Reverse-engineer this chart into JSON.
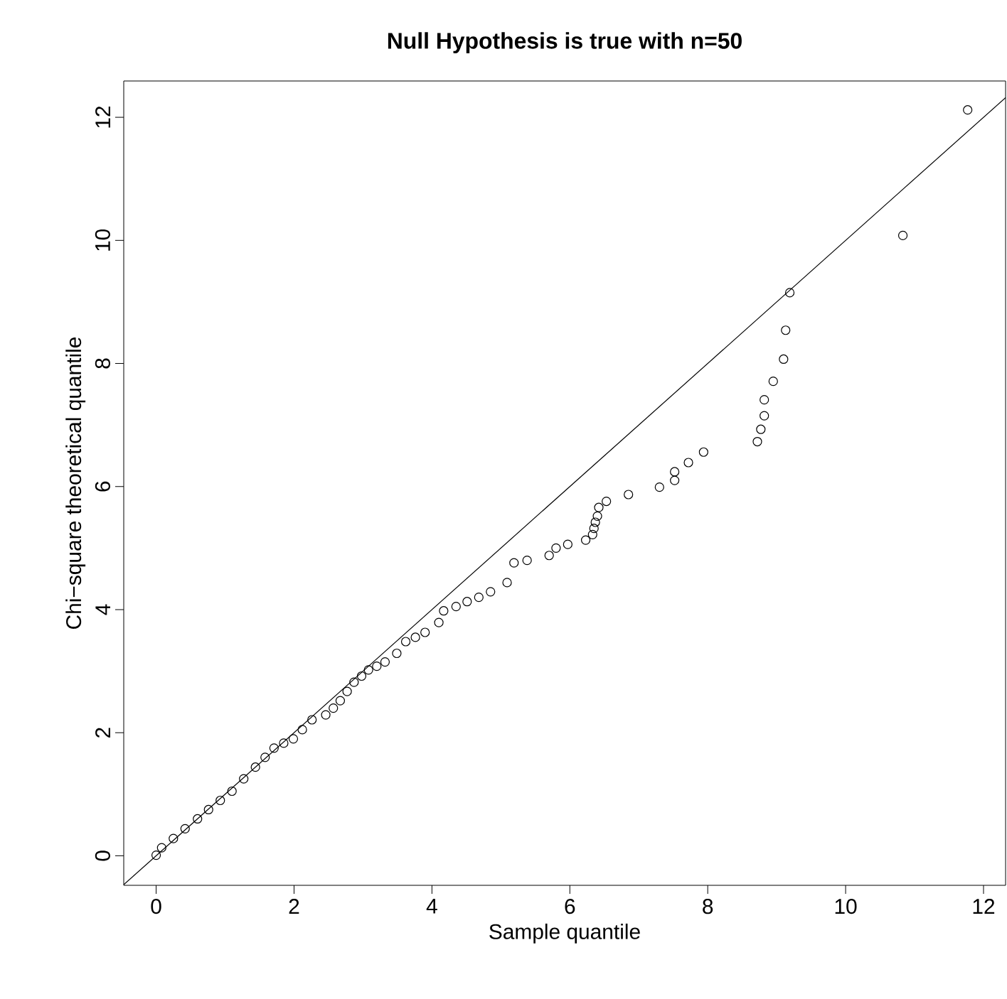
{
  "chart_data": {
    "type": "scatter",
    "title": "Null Hypothesis is true with n=50",
    "xlabel": "Sample quantile",
    "ylabel": "Chi−square theoretical quantile",
    "xlim": [
      -0.47,
      12.32
    ],
    "ylim": [
      -0.48,
      12.59
    ],
    "xticks": [
      0,
      2,
      4,
      6,
      8,
      10,
      12
    ],
    "yticks": [
      0,
      2,
      4,
      6,
      8,
      10,
      12
    ],
    "grid": false,
    "series": [
      {
        "color": "#000000",
        "marker": "circle",
        "x": [
          0,
          0.08,
          0.25,
          0.42,
          0.6,
          0.76,
          0.93,
          1.1,
          1.27,
          1.44,
          1.58,
          1.71,
          1.85,
          1.99,
          2.12,
          2.26,
          2.46,
          2.57,
          2.67,
          2.77,
          2.87,
          2.98,
          3.08,
          3.2,
          3.32,
          3.49,
          3.62,
          3.76,
          3.9,
          4.1,
          4.17,
          4.35,
          4.51,
          4.68,
          4.85,
          5.09,
          5.19,
          5.38,
          5.7,
          5.8,
          5.97,
          6.23,
          6.33,
          6.35,
          6.37,
          6.4,
          6.42,
          6.53,
          6.85,
          7.3,
          7.52,
          7.52,
          7.72,
          7.94,
          8.72,
          8.77,
          8.82,
          8.82,
          8.95,
          9.1,
          9.13,
          9.19,
          10.83,
          11.77
        ],
        "values": [
          0.01,
          0.13,
          0.28,
          0.44,
          0.6,
          0.75,
          0.9,
          1.05,
          1.25,
          1.44,
          1.6,
          1.75,
          1.83,
          1.9,
          2.05,
          2.21,
          2.29,
          2.4,
          2.52,
          2.67,
          2.82,
          2.92,
          3.02,
          3.08,
          3.15,
          3.29,
          3.48,
          3.55,
          3.63,
          3.79,
          3.98,
          4.05,
          4.13,
          4.2,
          4.29,
          4.44,
          4.76,
          4.8,
          4.88,
          5.0,
          5.06,
          5.13,
          5.22,
          5.32,
          5.42,
          5.52,
          5.66,
          5.76,
          5.87,
          5.99,
          6.1,
          6.24,
          6.39,
          6.56,
          6.73,
          6.93,
          7.15,
          7.41,
          7.71,
          8.07,
          8.54,
          9.15,
          10.08,
          12.12
        ]
      },
      {
        "type": "line",
        "color": "#000000",
        "marker": "none",
        "x": [
          -0.47,
          12.32
        ],
        "values": [
          -0.47,
          12.32
        ]
      }
    ]
  }
}
